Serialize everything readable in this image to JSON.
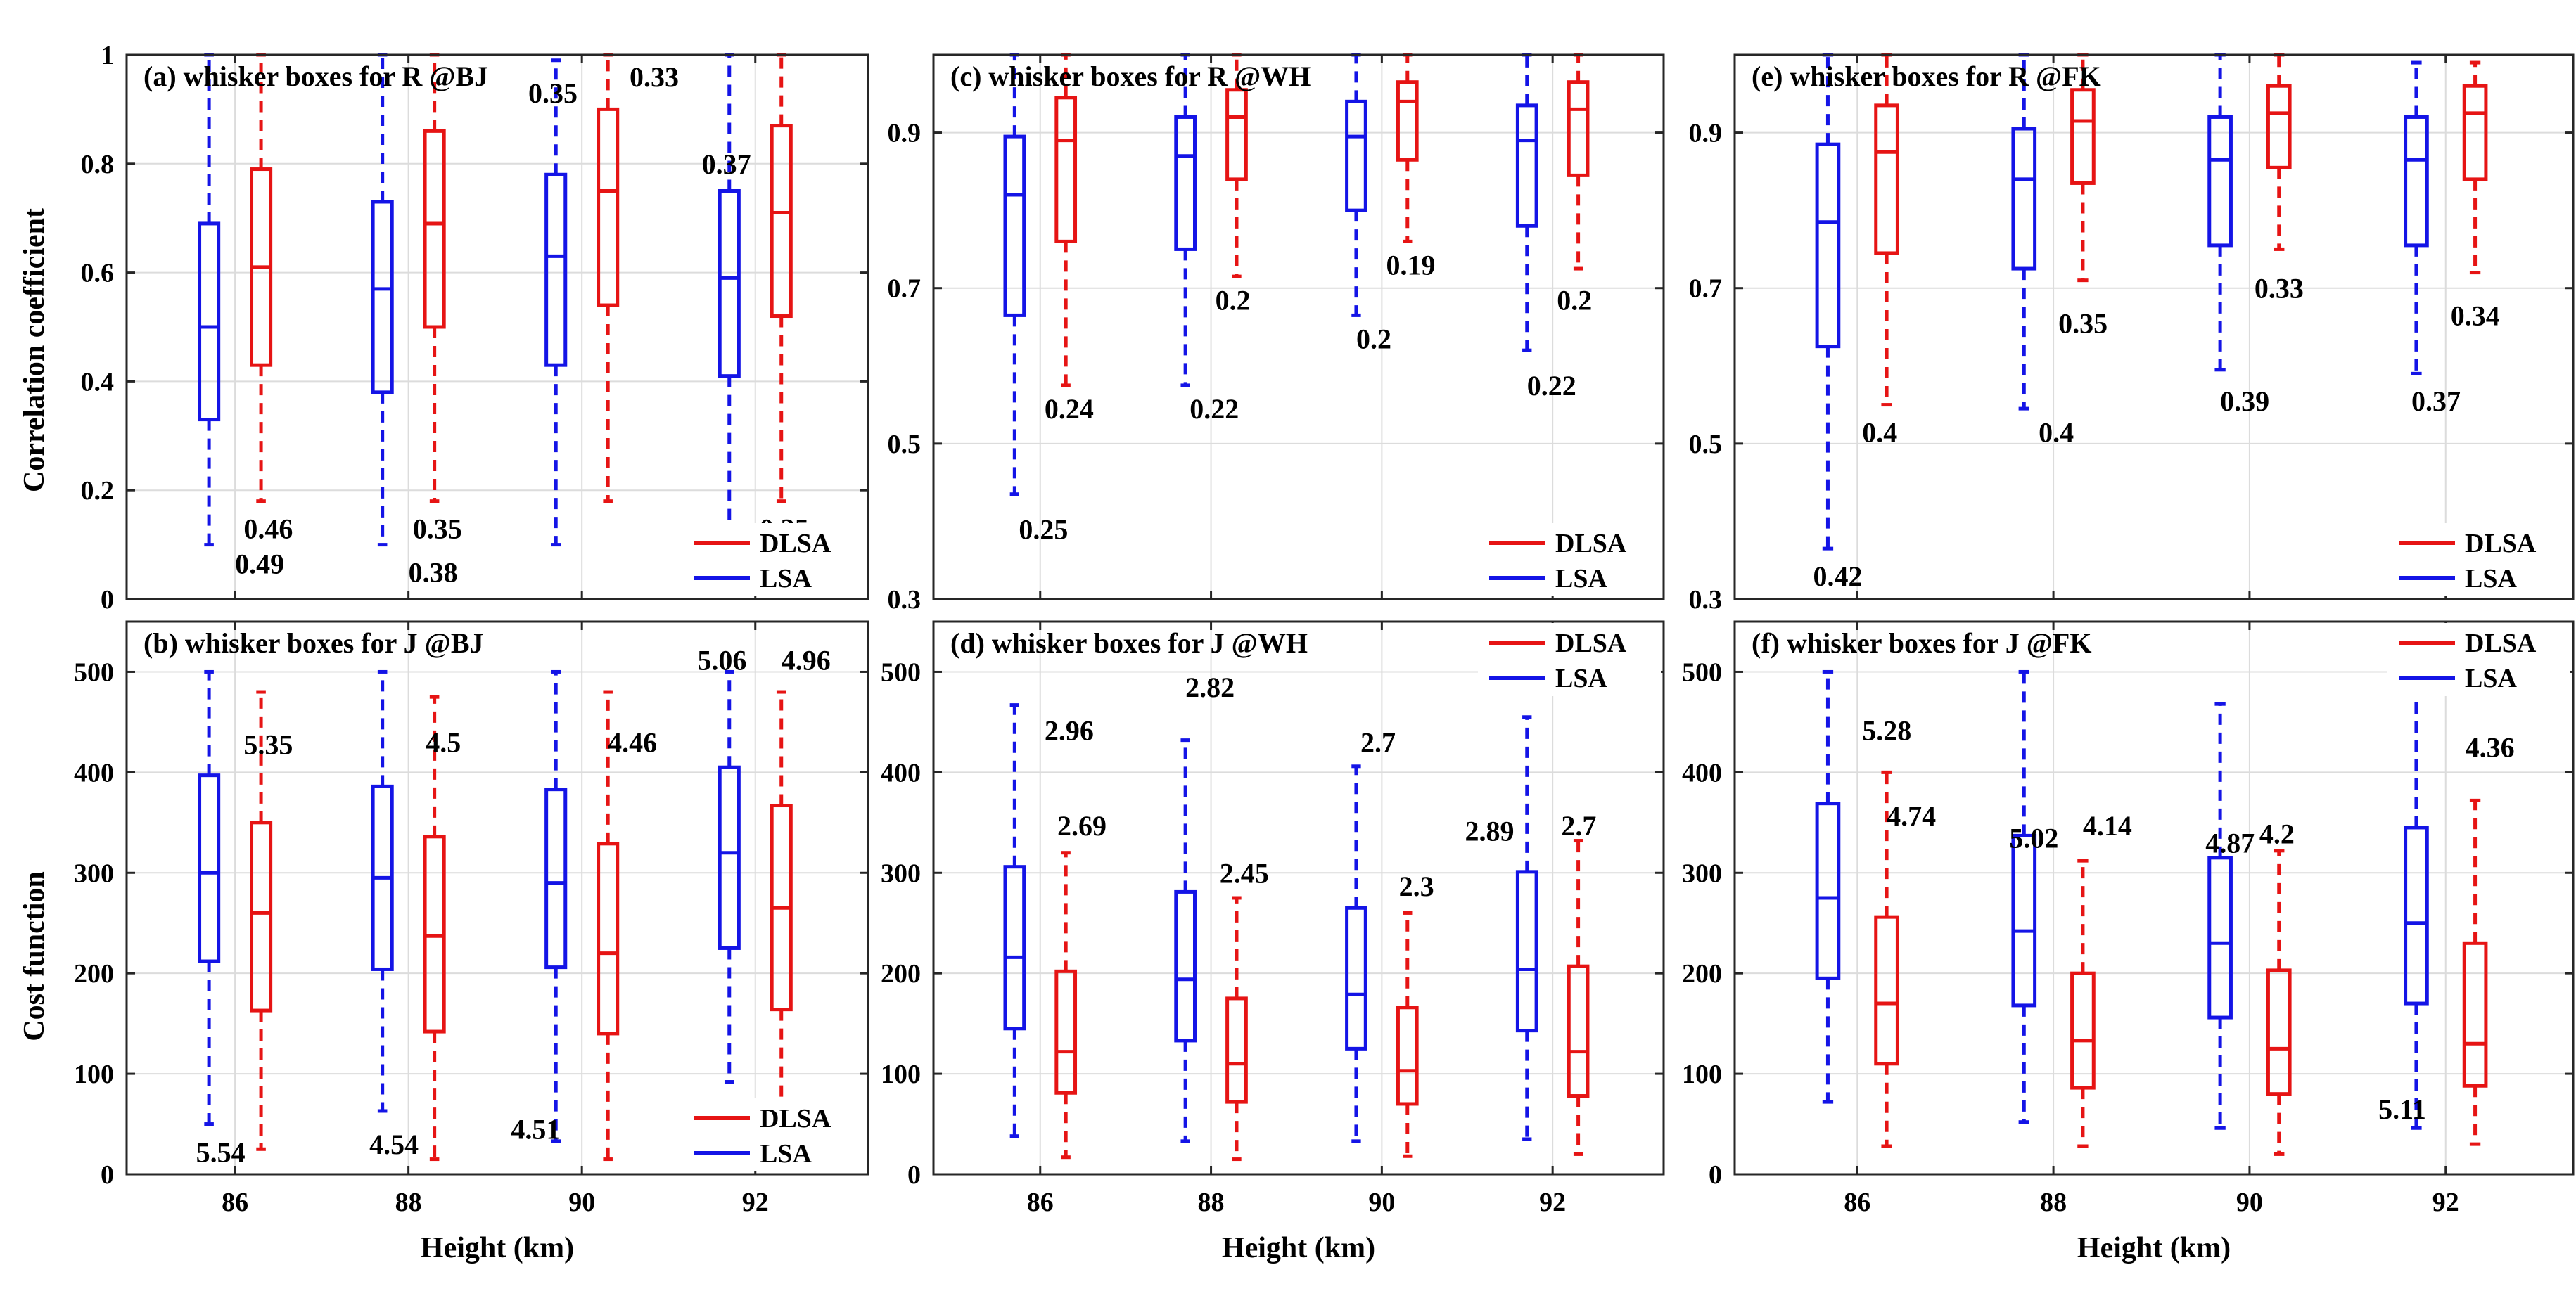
{
  "figure": {
    "ylabel_top": "Correlation coefficient",
    "ylabel_bottom": "Cost function",
    "xlabel": "Height (km)",
    "legend_labels": [
      "DLSA",
      "LSA"
    ]
  },
  "colors": {
    "LSA": "#1414e6",
    "DLSA": "#e61414",
    "grid": "#dcdcdc",
    "axis": "#262626"
  },
  "chart_data": [
    {
      "id": "a",
      "type": "box",
      "title": "(a) whisker boxes for R @BJ",
      "xlabel": "",
      "ylabel": "Correlation coefficient",
      "categories": [
        "86",
        "88",
        "90",
        "92"
      ],
      "ylim": [
        0,
        1
      ],
      "yticks": [
        0,
        0.2,
        0.4,
        0.6,
        0.8,
        1
      ],
      "yticklabels": [
        "0",
        "0.2",
        "0.4",
        "0.6",
        "0.8",
        "1"
      ],
      "grid": true,
      "legend": "bottom-right",
      "series": [
        {
          "name": "LSA",
          "boxes": [
            {
              "min": 0.1,
              "q1": 0.33,
              "median": 0.5,
              "q3": 0.69,
              "max": 1.0
            },
            {
              "min": 0.1,
              "q1": 0.38,
              "median": 0.57,
              "q3": 0.73,
              "max": 1.0
            },
            {
              "min": 0.1,
              "q1": 0.43,
              "median": 0.63,
              "q3": 0.78,
              "max": 0.99
            },
            {
              "min": 0.1,
              "q1": 0.41,
              "median": 0.59,
              "q3": 0.75,
              "max": 1.0
            }
          ]
        },
        {
          "name": "DLSA",
          "boxes": [
            {
              "min": 0.18,
              "q1": 0.43,
              "median": 0.61,
              "q3": 0.79,
              "max": 1.0
            },
            {
              "min": 0.18,
              "q1": 0.5,
              "median": 0.69,
              "q3": 0.86,
              "max": 1.0
            },
            {
              "min": 0.18,
              "q1": 0.54,
              "median": 0.75,
              "q3": 0.9,
              "max": 1.0
            },
            {
              "min": 0.18,
              "q1": 0.52,
              "median": 0.71,
              "q3": 0.87,
              "max": 1.0
            }
          ]
        }
      ],
      "annotations": [
        {
          "text": "0.49",
          "x": 86,
          "y": 0.065,
          "align": "left"
        },
        {
          "text": "0.46",
          "x": 86.1,
          "y": 0.13,
          "align": "left"
        },
        {
          "text": "0.38",
          "x": 88,
          "y": 0.05,
          "align": "left"
        },
        {
          "text": "0.35",
          "x": 88.05,
          "y": 0.13,
          "align": "left"
        },
        {
          "text": "0.35",
          "x": 89.95,
          "y": 0.93,
          "align": "right"
        },
        {
          "text": "0.33",
          "x": 90.55,
          "y": 0.96,
          "align": "left"
        },
        {
          "text": "0.37",
          "x": 91.95,
          "y": 0.8,
          "align": "right"
        },
        {
          "text": "0.35",
          "x": 92.05,
          "y": 0.13,
          "align": "left"
        }
      ]
    },
    {
      "id": "c",
      "type": "box",
      "title": "(c) whisker boxes for R @WH",
      "xlabel": "",
      "ylabel": "",
      "categories": [
        "86",
        "88",
        "90",
        "92"
      ],
      "ylim": [
        0.3,
        1
      ],
      "yticks": [
        0.3,
        0.5,
        0.7,
        0.9
      ],
      "yticklabels": [
        "0.3",
        "0.5",
        "0.7",
        "0.9"
      ],
      "grid": true,
      "legend": "bottom-right",
      "series": [
        {
          "name": "LSA",
          "boxes": [
            {
              "min": 0.435,
              "q1": 0.665,
              "median": 0.82,
              "q3": 0.895,
              "max": 1.0
            },
            {
              "min": 0.575,
              "q1": 0.75,
              "median": 0.87,
              "q3": 0.92,
              "max": 1.0
            },
            {
              "min": 0.665,
              "q1": 0.8,
              "median": 0.895,
              "q3": 0.94,
              "max": 1.0
            },
            {
              "min": 0.62,
              "q1": 0.78,
              "median": 0.89,
              "q3": 0.935,
              "max": 1.0
            }
          ]
        },
        {
          "name": "DLSA",
          "boxes": [
            {
              "min": 0.575,
              "q1": 0.76,
              "median": 0.89,
              "q3": 0.945,
              "max": 1.0
            },
            {
              "min": 0.715,
              "q1": 0.84,
              "median": 0.92,
              "q3": 0.955,
              "max": 1.0
            },
            {
              "min": 0.76,
              "q1": 0.865,
              "median": 0.94,
              "q3": 0.965,
              "max": 1.0
            },
            {
              "min": 0.725,
              "q1": 0.845,
              "median": 0.93,
              "q3": 0.965,
              "max": 1.0
            }
          ]
        }
      ],
      "annotations": [
        {
          "text": "0.24",
          "x": 86.05,
          "y": 0.545,
          "align": "left"
        },
        {
          "text": "0.25",
          "x": 85.75,
          "y": 0.39,
          "align": "left"
        },
        {
          "text": "0.22",
          "x": 87.75,
          "y": 0.545,
          "align": "left"
        },
        {
          "text": "0.2",
          "x": 88.05,
          "y": 0.685,
          "align": "left"
        },
        {
          "text": "0.19",
          "x": 90.05,
          "y": 0.73,
          "align": "left"
        },
        {
          "text": "0.2",
          "x": 89.7,
          "y": 0.635,
          "align": "left"
        },
        {
          "text": "0.22",
          "x": 91.7,
          "y": 0.575,
          "align": "left"
        },
        {
          "text": "0.2",
          "x": 92.05,
          "y": 0.685,
          "align": "left"
        }
      ]
    },
    {
      "id": "e",
      "type": "box",
      "title": "(e) whisker boxes for R @FK",
      "xlabel": "",
      "ylabel": "",
      "categories": [
        "86",
        "88",
        "90",
        "92"
      ],
      "ylim": [
        0.3,
        1
      ],
      "yticks": [
        0.3,
        0.5,
        0.7,
        0.9
      ],
      "yticklabels": [
        "0.3",
        "0.5",
        "0.7",
        "0.9"
      ],
      "grid": true,
      "legend": "bottom-right",
      "series": [
        {
          "name": "LSA",
          "boxes": [
            {
              "min": 0.365,
              "q1": 0.625,
              "median": 0.785,
              "q3": 0.885,
              "max": 1.0
            },
            {
              "min": 0.545,
              "q1": 0.725,
              "median": 0.84,
              "q3": 0.905,
              "max": 1.0
            },
            {
              "min": 0.595,
              "q1": 0.755,
              "median": 0.865,
              "q3": 0.92,
              "max": 1.0
            },
            {
              "min": 0.59,
              "q1": 0.755,
              "median": 0.865,
              "q3": 0.92,
              "max": 0.99
            }
          ]
        },
        {
          "name": "DLSA",
          "boxes": [
            {
              "min": 0.55,
              "q1": 0.745,
              "median": 0.875,
              "q3": 0.935,
              "max": 1.0
            },
            {
              "min": 0.71,
              "q1": 0.835,
              "median": 0.915,
              "q3": 0.955,
              "max": 1.0
            },
            {
              "min": 0.75,
              "q1": 0.855,
              "median": 0.925,
              "q3": 0.96,
              "max": 1.0
            },
            {
              "min": 0.72,
              "q1": 0.84,
              "median": 0.925,
              "q3": 0.96,
              "max": 0.99
            }
          ]
        }
      ],
      "annotations": [
        {
          "text": "0.4",
          "x": 86.05,
          "y": 0.515,
          "align": "left"
        },
        {
          "text": "0.42",
          "x": 85.55,
          "y": 0.33,
          "align": "left"
        },
        {
          "text": "0.4",
          "x": 87.85,
          "y": 0.515,
          "align": "left"
        },
        {
          "text": "0.35",
          "x": 88.05,
          "y": 0.655,
          "align": "left"
        },
        {
          "text": "0.39",
          "x": 89.7,
          "y": 0.555,
          "align": "left"
        },
        {
          "text": "0.33",
          "x": 90.05,
          "y": 0.7,
          "align": "left"
        },
        {
          "text": "0.37",
          "x": 91.65,
          "y": 0.555,
          "align": "left"
        },
        {
          "text": "0.34",
          "x": 92.05,
          "y": 0.665,
          "align": "left"
        }
      ]
    },
    {
      "id": "b",
      "type": "box",
      "title": "(b) whisker boxes for J @BJ",
      "xlabel": "Height (km)",
      "ylabel": "Cost function",
      "categories": [
        "86",
        "88",
        "90",
        "92"
      ],
      "ylim": [
        0,
        550
      ],
      "yticks": [
        0,
        100,
        200,
        300,
        400,
        500
      ],
      "yticklabels": [
        "0",
        "100",
        "200",
        "300",
        "400",
        "500"
      ],
      "grid": true,
      "legend": "bottom-right",
      "series": [
        {
          "name": "LSA",
          "boxes": [
            {
              "min": 50,
              "q1": 212,
              "median": 300,
              "q3": 397,
              "max": 500
            },
            {
              "min": 63,
              "q1": 204,
              "median": 295,
              "q3": 386,
              "max": 500
            },
            {
              "min": 33,
              "q1": 206,
              "median": 290,
              "q3": 383,
              "max": 500
            },
            {
              "min": 92,
              "q1": 225,
              "median": 320,
              "q3": 405,
              "max": 500
            }
          ]
        },
        {
          "name": "DLSA",
          "boxes": [
            {
              "min": 25,
              "q1": 163,
              "median": 260,
              "q3": 350,
              "max": 480
            },
            {
              "min": 15,
              "q1": 142,
              "median": 237,
              "q3": 336,
              "max": 475
            },
            {
              "min": 15,
              "q1": 140,
              "median": 220,
              "q3": 329,
              "max": 480
            },
            {
              "min": 20,
              "q1": 164,
              "median": 265,
              "q3": 367,
              "max": 480
            }
          ]
        }
      ],
      "annotations": [
        {
          "text": "5.35",
          "x": 86.1,
          "y": 428,
          "align": "left"
        },
        {
          "text": "5.54",
          "x": 85.55,
          "y": 22,
          "align": "left"
        },
        {
          "text": "4.5",
          "x": 88.2,
          "y": 430,
          "align": "left"
        },
        {
          "text": "4.54",
          "x": 87.55,
          "y": 30,
          "align": "left"
        },
        {
          "text": "4.46",
          "x": 90.3,
          "y": 430,
          "align": "left"
        },
        {
          "text": "4.51",
          "x": 89.75,
          "y": 45,
          "align": "right"
        },
        {
          "text": "5.06",
          "x": 91.9,
          "y": 512,
          "align": "right"
        },
        {
          "text": "4.96",
          "x": 92.3,
          "y": 512,
          "align": "left"
        }
      ]
    },
    {
      "id": "d",
      "type": "box",
      "title": "(d) whisker boxes for J @WH",
      "xlabel": "Height (km)",
      "ylabel": "",
      "categories": [
        "86",
        "88",
        "90",
        "92"
      ],
      "ylim": [
        0,
        550
      ],
      "yticks": [
        0,
        100,
        200,
        300,
        400,
        500
      ],
      "yticklabels": [
        "0",
        "100",
        "200",
        "300",
        "400",
        "500"
      ],
      "grid": true,
      "legend": "top-right",
      "series": [
        {
          "name": "LSA",
          "boxes": [
            {
              "min": 38,
              "q1": 145,
              "median": 216,
              "q3": 306,
              "max": 467
            },
            {
              "min": 33,
              "q1": 133,
              "median": 194,
              "q3": 281,
              "max": 432
            },
            {
              "min": 33,
              "q1": 125,
              "median": 179,
              "q3": 265,
              "max": 406
            },
            {
              "min": 35,
              "q1": 143,
              "median": 204,
              "q3": 301,
              "max": 455
            }
          ]
        },
        {
          "name": "DLSA",
          "boxes": [
            {
              "min": 17,
              "q1": 81,
              "median": 122,
              "q3": 202,
              "max": 320
            },
            {
              "min": 15,
              "q1": 72,
              "median": 110,
              "q3": 175,
              "max": 275
            },
            {
              "min": 18,
              "q1": 70,
              "median": 103,
              "q3": 166,
              "max": 260
            },
            {
              "min": 20,
              "q1": 78,
              "median": 122,
              "q3": 207,
              "max": 332
            }
          ]
        }
      ],
      "annotations": [
        {
          "text": "2.96",
          "x": 86.05,
          "y": 442,
          "align": "left"
        },
        {
          "text": "2.69",
          "x": 86.2,
          "y": 347,
          "align": "left"
        },
        {
          "text": "2.82",
          "x": 87.7,
          "y": 485,
          "align": "left"
        },
        {
          "text": "2.45",
          "x": 88.1,
          "y": 300,
          "align": "left"
        },
        {
          "text": "2.7",
          "x": 89.75,
          "y": 430,
          "align": "left"
        },
        {
          "text": "2.3",
          "x": 90.2,
          "y": 287,
          "align": "left"
        },
        {
          "text": "2.89",
          "x": 91.55,
          "y": 342,
          "align": "right"
        },
        {
          "text": "2.7",
          "x": 92.1,
          "y": 347,
          "align": "left"
        }
      ]
    },
    {
      "id": "f",
      "type": "box",
      "title": "(f) whisker boxes for J @FK",
      "xlabel": "Height (km)",
      "ylabel": "",
      "categories": [
        "86",
        "88",
        "90",
        "92"
      ],
      "ylim": [
        0,
        550
      ],
      "yticks": [
        0,
        100,
        200,
        300,
        400,
        500
      ],
      "yticklabels": [
        "0",
        "100",
        "200",
        "300",
        "400",
        "500"
      ],
      "grid": true,
      "legend": "top-right",
      "series": [
        {
          "name": "LSA",
          "boxes": [
            {
              "min": 72,
              "q1": 195,
              "median": 275,
              "q3": 369,
              "max": 500
            },
            {
              "min": 52,
              "q1": 168,
              "median": 242,
              "q3": 337,
              "max": 500
            },
            {
              "min": 46,
              "q1": 156,
              "median": 230,
              "q3": 315,
              "max": 468
            },
            {
              "min": 46,
              "q1": 170,
              "median": 250,
              "q3": 345,
              "max": 500
            }
          ]
        },
        {
          "name": "DLSA",
          "boxes": [
            {
              "min": 28,
              "q1": 110,
              "median": 170,
              "q3": 256,
              "max": 400
            },
            {
              "min": 28,
              "q1": 86,
              "median": 133,
              "q3": 200,
              "max": 312
            },
            {
              "min": 20,
              "q1": 80,
              "median": 125,
              "q3": 203,
              "max": 322
            },
            {
              "min": 30,
              "q1": 88,
              "median": 130,
              "q3": 230,
              "max": 372
            }
          ]
        }
      ],
      "annotations": [
        {
          "text": "5.28",
          "x": 86.05,
          "y": 442,
          "align": "left"
        },
        {
          "text": "4.74",
          "x": 86.3,
          "y": 357,
          "align": "left"
        },
        {
          "text": "5.02",
          "x": 87.55,
          "y": 335,
          "align": "left"
        },
        {
          "text": "4.14",
          "x": 88.3,
          "y": 347,
          "align": "left"
        },
        {
          "text": "4.87",
          "x": 89.55,
          "y": 330,
          "align": "left"
        },
        {
          "text": "4.2",
          "x": 90.1,
          "y": 339,
          "align": "left"
        },
        {
          "text": "5.11",
          "x": 91.8,
          "y": 65,
          "align": "right"
        },
        {
          "text": "4.36",
          "x": 92.2,
          "y": 425,
          "align": "left"
        }
      ]
    }
  ]
}
